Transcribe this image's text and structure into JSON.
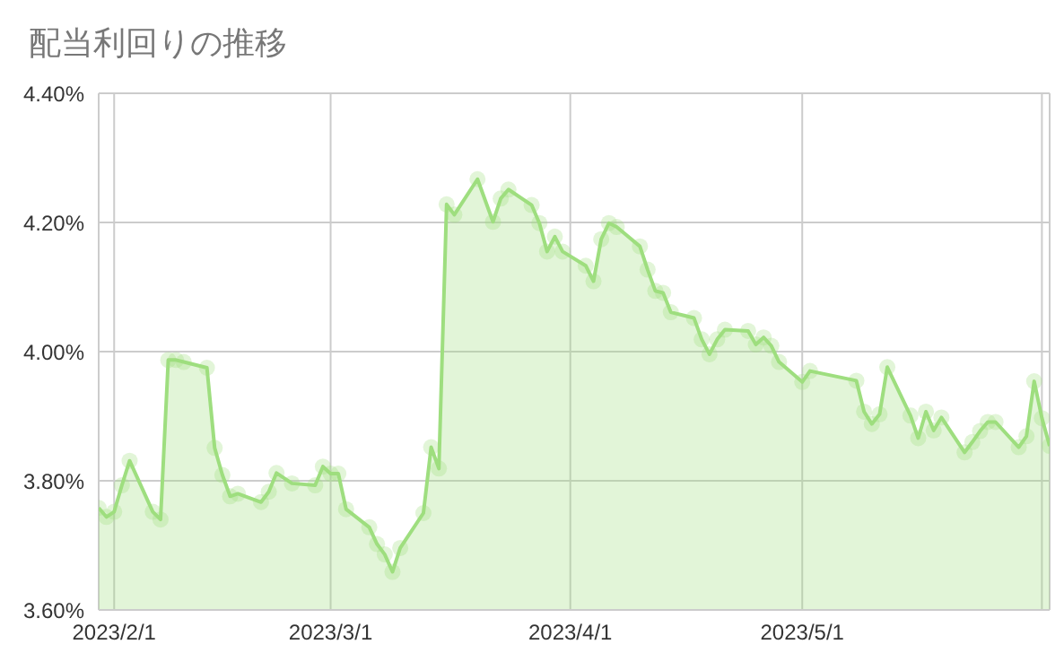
{
  "chart_data": {
    "type": "area",
    "title": "配当利回りの推移",
    "x": [
      "2023-01-30",
      "2023-01-31",
      "2023-02-01",
      "2023-02-02",
      "2023-02-03",
      "2023-02-06",
      "2023-02-07",
      "2023-02-08",
      "2023-02-09",
      "2023-02-10",
      "2023-02-13",
      "2023-02-14",
      "2023-02-15",
      "2023-02-16",
      "2023-02-17",
      "2023-02-20",
      "2023-02-21",
      "2023-02-22",
      "2023-02-24",
      "2023-02-27",
      "2023-02-28",
      "2023-03-01",
      "2023-03-02",
      "2023-03-03",
      "2023-03-06",
      "2023-03-07",
      "2023-03-08",
      "2023-03-09",
      "2023-03-10",
      "2023-03-13",
      "2023-03-14",
      "2023-03-15",
      "2023-03-16",
      "2023-03-17",
      "2023-03-20",
      "2023-03-22",
      "2023-03-23",
      "2023-03-24",
      "2023-03-27",
      "2023-03-28",
      "2023-03-29",
      "2023-03-30",
      "2023-03-31",
      "2023-04-03",
      "2023-04-04",
      "2023-04-05",
      "2023-04-06",
      "2023-04-07",
      "2023-04-10",
      "2023-04-11",
      "2023-04-12",
      "2023-04-13",
      "2023-04-14",
      "2023-04-17",
      "2023-04-18",
      "2023-04-19",
      "2023-04-20",
      "2023-04-21",
      "2023-04-24",
      "2023-04-25",
      "2023-04-26",
      "2023-04-27",
      "2023-04-28",
      "2023-05-01",
      "2023-05-02",
      "2023-05-08",
      "2023-05-09",
      "2023-05-10",
      "2023-05-11",
      "2023-05-12",
      "2023-05-15",
      "2023-05-16",
      "2023-05-17",
      "2023-05-18",
      "2023-05-19",
      "2023-05-22",
      "2023-05-23",
      "2023-05-24",
      "2023-05-25",
      "2023-05-26",
      "2023-05-29",
      "2023-05-30",
      "2023-05-31",
      "2023-06-01",
      "2023-06-02"
    ],
    "series": [
      {
        "color": "#9ede7f",
        "values": [
          3.758,
          3.744,
          3.752,
          3.793,
          3.831,
          3.752,
          3.74,
          3.987,
          3.987,
          3.984,
          3.975,
          3.851,
          3.809,
          3.776,
          3.78,
          3.767,
          3.783,
          3.812,
          3.796,
          3.793,
          3.822,
          3.811,
          3.811,
          3.756,
          3.728,
          3.702,
          3.686,
          3.659,
          3.696,
          3.75,
          3.852,
          3.819,
          4.228,
          4.212,
          4.267,
          4.201,
          4.237,
          4.251,
          4.227,
          4.199,
          4.155,
          4.178,
          4.155,
          4.133,
          4.109,
          4.174,
          4.199,
          4.193,
          4.163,
          4.127,
          4.094,
          4.091,
          4.061,
          4.052,
          4.019,
          3.996,
          4.019,
          4.034,
          4.032,
          4.011,
          4.022,
          4.009,
          3.984,
          3.953,
          3.97,
          3.955,
          3.907,
          3.888,
          3.903,
          3.976,
          3.901,
          3.866,
          3.907,
          3.878,
          3.898,
          3.844,
          3.86,
          3.877,
          3.891,
          3.891,
          3.852,
          3.869,
          3.954,
          3.897,
          3.854
        ]
      }
    ],
    "xlim": [
      "2023-01-30",
      "2023-06-02"
    ],
    "xticks": [
      {
        "value": "2023-02-01",
        "label": "2023/2/1"
      },
      {
        "value": "2023-03-01",
        "label": "2023/3/1"
      },
      {
        "value": "2023-04-01",
        "label": "2023/4/1"
      },
      {
        "value": "2023-05-01",
        "label": "2023/5/1"
      },
      {
        "value": "2023-06-01",
        "label": null
      }
    ],
    "ylim": [
      3.6,
      4.4
    ],
    "yticks": [
      {
        "value": 3.6,
        "label": "3.60%"
      },
      {
        "value": 3.8,
        "label": "3.80%"
      },
      {
        "value": 4.0,
        "label": "4.00%"
      },
      {
        "value": 4.2,
        "label": "4.20%"
      },
      {
        "value": 4.4,
        "label": "4.40%"
      }
    ],
    "grid": true,
    "marker": "circle",
    "line_style": "solid"
  }
}
